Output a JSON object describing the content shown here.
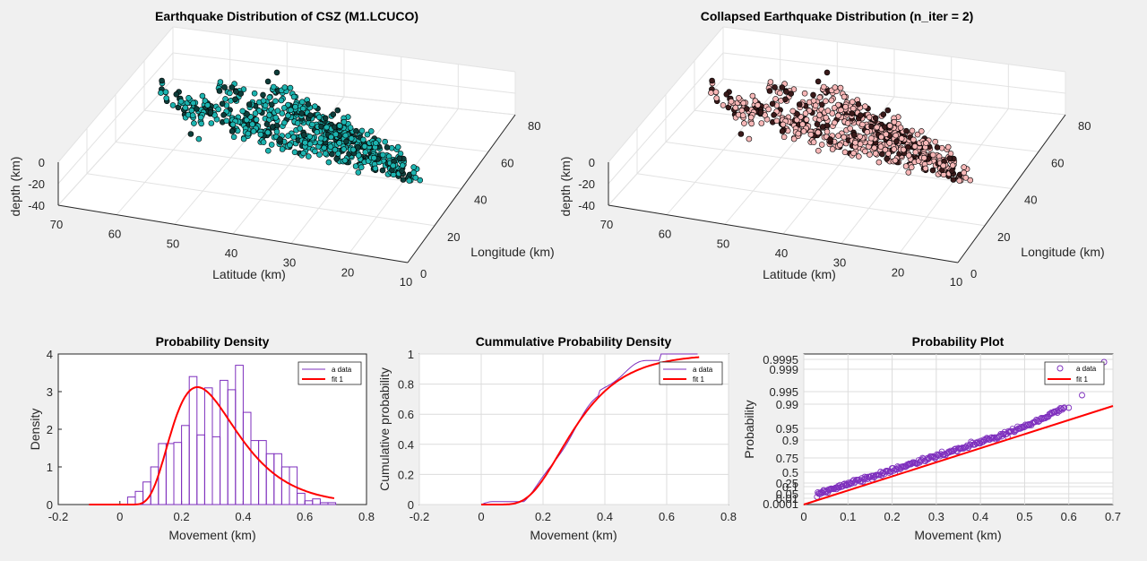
{
  "colors": {
    "background": "#f0f0f0",
    "cyan_marker": "#1cb4b0",
    "pink_marker": "#f7b7b7",
    "hist": "#7e2fbd",
    "fit": "#ff0000",
    "grid": "#dcdcdc"
  },
  "chart_data": [
    {
      "type": "scatter",
      "title": "Earthquake Distribution of CSZ (M1.LCUCO)",
      "xlabel": "Latitude (km)",
      "ylabel": "Longitude (km)",
      "zlabel": "depth (km)",
      "xlim": [
        10,
        70
      ],
      "ylim": [
        0,
        80
      ],
      "zlim": [
        -40,
        0
      ],
      "xticks": [
        "70",
        "60",
        "50",
        "40",
        "30",
        "20",
        "10"
      ],
      "yticks": [
        "80",
        "60",
        "40",
        "20",
        "0"
      ],
      "zticks": [
        "0",
        "-20",
        "-40"
      ],
      "marker_color": "#1cb4b0",
      "description_points": [
        [
          60,
          65,
          -5
        ],
        [
          55,
          60,
          -10
        ],
        [
          45,
          55,
          -12
        ],
        [
          40,
          45,
          -15
        ],
        [
          35,
          40,
          -18
        ],
        [
          30,
          38,
          -20
        ],
        [
          25,
          35,
          -22
        ],
        [
          20,
          30,
          -25
        ],
        [
          15,
          28,
          -28
        ]
      ]
    },
    {
      "type": "scatter",
      "title": "Collapsed Earthquake Distribution (n_iter = 2)",
      "xlabel": "Latitude (km)",
      "ylabel": "Longitude (km)",
      "zlabel": "depth (km)",
      "xlim": [
        10,
        70
      ],
      "ylim": [
        0,
        80
      ],
      "zlim": [
        -40,
        0
      ],
      "xticks": [
        "70",
        "60",
        "50",
        "40",
        "30",
        "20",
        "10"
      ],
      "yticks": [
        "80",
        "60",
        "40",
        "20",
        "0"
      ],
      "zticks": [
        "0",
        "-20",
        "-40"
      ],
      "marker_color": "#f7b7b7"
    },
    {
      "type": "bar",
      "title": "Probability Density",
      "xlabel": "Movement (km)",
      "ylabel": "Density",
      "xlim": [
        -0.2,
        0.8
      ],
      "ylim": [
        0,
        4
      ],
      "xticks": [
        "-0.2",
        "0",
        "0.2",
        "0.4",
        "0.6",
        "0.8"
      ],
      "yticks": [
        "0",
        "1",
        "2",
        "3",
        "4"
      ],
      "bin_width": 0.025,
      "bin_starts": [
        0.025,
        0.05,
        0.075,
        0.1,
        0.125,
        0.15,
        0.175,
        0.2,
        0.225,
        0.25,
        0.275,
        0.3,
        0.325,
        0.35,
        0.375,
        0.4,
        0.425,
        0.45,
        0.475,
        0.5,
        0.525,
        0.55,
        0.575,
        0.6,
        0.625,
        0.65,
        0.675
      ],
      "values": [
        0.2,
        0.35,
        0.6,
        1.0,
        1.62,
        1.62,
        1.65,
        2.1,
        3.4,
        1.85,
        3.1,
        1.8,
        3.3,
        3.05,
        3.7,
        2.45,
        1.7,
        1.7,
        1.35,
        1.35,
        1.0,
        1.0,
        0.3,
        0.1,
        0.15,
        0.05,
        0.05
      ],
      "fit": {
        "type": "lognormal-like",
        "peak_x": 0.25,
        "peak_y": 3.12
      },
      "legend": [
        "a data",
        "fit 1"
      ],
      "legend_position": "top-right"
    },
    {
      "type": "line",
      "title": "Cummulative Probability Density",
      "xlabel": "Movement (km)",
      "ylabel": "Cumulative probability",
      "xlim": [
        -0.2,
        0.8
      ],
      "ylim": [
        0,
        1
      ],
      "xticks": [
        "-0.2",
        "0",
        "0.2",
        "0.4",
        "0.6",
        "0.8"
      ],
      "yticks": [
        "0",
        "0.2",
        "0.4",
        "0.6",
        "0.8",
        "1"
      ],
      "series": [
        {
          "name": "a data",
          "color": "#7e2fbd"
        },
        {
          "name": "fit 1",
          "color": "#ff0000"
        }
      ],
      "legend_position": "top-right"
    },
    {
      "type": "scatter",
      "title": "Probability Plot",
      "xlabel": "Movement (km)",
      "ylabel": "Probability",
      "xlim": [
        0,
        0.7
      ],
      "xticks": [
        "0",
        "0.1",
        "0.2",
        "0.3",
        "0.4",
        "0.5",
        "0.6",
        "0.7"
      ],
      "yticks": [
        "0.0001",
        "0.01",
        "0.05",
        "0.1",
        "0.25",
        "0.5",
        "0.75",
        "0.9",
        "0.95",
        "0.99",
        "0.995",
        "0.999",
        "0.9995"
      ],
      "legend": [
        "a data",
        "fit 1"
      ],
      "legend_position": "top-right"
    }
  ]
}
